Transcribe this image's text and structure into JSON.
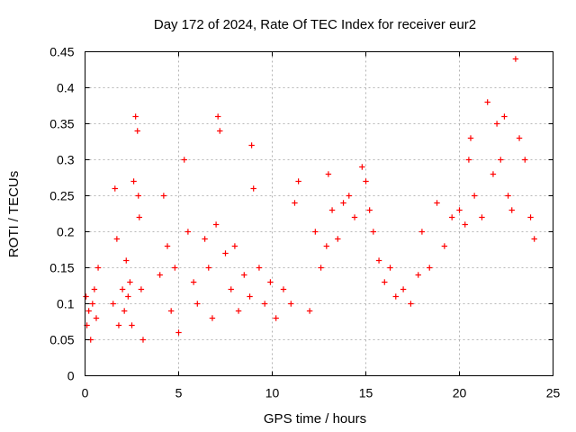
{
  "chart_data": {
    "type": "scatter",
    "title": "Day 172 of 2024, Rate Of TEC Index for receiver eur2",
    "xlabel": "GPS time / hours",
    "ylabel": "ROTI / TECUs",
    "xlim": [
      0,
      25
    ],
    "ylim": [
      0,
      0.45
    ],
    "xticks": [
      0,
      5,
      10,
      15,
      20,
      25
    ],
    "yticks": [
      0,
      0.05,
      0.1,
      0.15,
      0.2,
      0.25,
      0.3,
      0.35,
      0.4,
      0.45
    ],
    "ytick_labels": [
      "0",
      "0.05",
      "0.1",
      "0.15",
      "0.2",
      "0.25",
      "0.3",
      "0.35",
      "0.4",
      "0.45"
    ],
    "marker": "+",
    "color": "#ff0000",
    "grid": true,
    "series": [
      {
        "name": "ROTI",
        "x": [
          0.05,
          0.1,
          0.2,
          0.3,
          0.4,
          0.5,
          0.6,
          0.7,
          1.5,
          1.6,
          1.7,
          1.8,
          2.0,
          2.1,
          2.2,
          2.3,
          2.4,
          2.5,
          2.6,
          2.7,
          2.8,
          2.85,
          2.9,
          3.0,
          3.1,
          4.0,
          4.2,
          4.4,
          4.6,
          4.8,
          5.0,
          5.3,
          5.5,
          5.8,
          6.0,
          6.4,
          6.6,
          6.8,
          7.0,
          7.1,
          7.2,
          7.5,
          7.8,
          8.0,
          8.2,
          8.5,
          8.8,
          8.9,
          9.0,
          9.3,
          9.6,
          9.9,
          10.2,
          10.6,
          11.0,
          11.2,
          11.4,
          12.0,
          12.3,
          12.6,
          12.9,
          13.0,
          13.2,
          13.5,
          13.8,
          14.1,
          14.4,
          14.8,
          15.0,
          15.2,
          15.4,
          15.7,
          16.0,
          16.3,
          16.6,
          17.0,
          17.4,
          17.8,
          18.0,
          18.4,
          18.8,
          19.2,
          19.6,
          20.0,
          20.3,
          20.5,
          20.6,
          20.8,
          21.2,
          21.5,
          21.8,
          22.0,
          22.2,
          22.4,
          22.6,
          22.8,
          23.0,
          23.2,
          23.5,
          23.8,
          24.0
        ],
        "y": [
          0.11,
          0.07,
          0.09,
          0.05,
          0.1,
          0.12,
          0.08,
          0.15,
          0.1,
          0.26,
          0.19,
          0.07,
          0.12,
          0.09,
          0.16,
          0.11,
          0.13,
          0.07,
          0.27,
          0.36,
          0.34,
          0.25,
          0.22,
          0.12,
          0.05,
          0.14,
          0.25,
          0.18,
          0.09,
          0.15,
          0.06,
          0.3,
          0.2,
          0.13,
          0.1,
          0.19,
          0.15,
          0.08,
          0.21,
          0.36,
          0.34,
          0.17,
          0.12,
          0.18,
          0.09,
          0.14,
          0.11,
          0.32,
          0.26,
          0.15,
          0.1,
          0.13,
          0.08,
          0.12,
          0.1,
          0.24,
          0.27,
          0.09,
          0.2,
          0.15,
          0.18,
          0.28,
          0.23,
          0.19,
          0.24,
          0.25,
          0.22,
          0.29,
          0.27,
          0.23,
          0.2,
          0.16,
          0.13,
          0.15,
          0.11,
          0.12,
          0.1,
          0.14,
          0.2,
          0.15,
          0.24,
          0.18,
          0.22,
          0.23,
          0.21,
          0.3,
          0.33,
          0.25,
          0.22,
          0.38,
          0.28,
          0.35,
          0.3,
          0.36,
          0.25,
          0.23,
          0.44,
          0.33,
          0.3,
          0.22,
          0.19
        ]
      }
    ]
  }
}
